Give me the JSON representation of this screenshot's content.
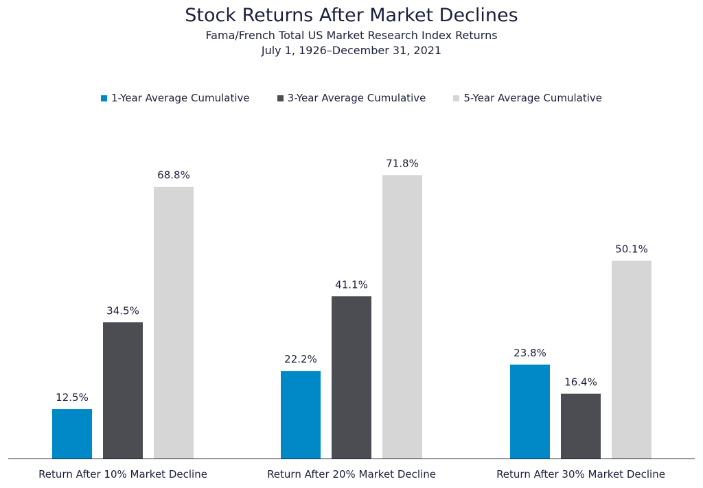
{
  "chart_data": {
    "type": "bar",
    "title": "Stock Returns After Market Declines",
    "subtitle_lines": [
      "Fama/French Total US Market Research Index Returns",
      "July 1, 1926–December 31, 2021"
    ],
    "categories": [
      "Return After 10% Market Decline",
      "Return After 20% Market Decline",
      "Return After 30% Market Decline"
    ],
    "series": [
      {
        "name": "1-Year Average Cumulative",
        "color": "#0089c6",
        "values": [
          12.5,
          22.2,
          23.8
        ],
        "labels": [
          "12.5%",
          "22.2%",
          "23.8%"
        ]
      },
      {
        "name": "3-Year Average Cumulative",
        "color": "#4c4d52",
        "values": [
          34.5,
          41.1,
          16.4
        ],
        "labels": [
          "34.5%",
          "41.1%",
          "16.4%"
        ]
      },
      {
        "name": "5-Year Average Cumulative",
        "color": "#d6d6d6",
        "values": [
          68.8,
          71.8,
          50.1
        ],
        "labels": [
          "68.8%",
          "71.8%",
          "50.1%"
        ]
      }
    ],
    "ylim": [
      0,
      80
    ],
    "grid": false,
    "legend": "top-center",
    "xlabel": "",
    "ylabel": ""
  }
}
